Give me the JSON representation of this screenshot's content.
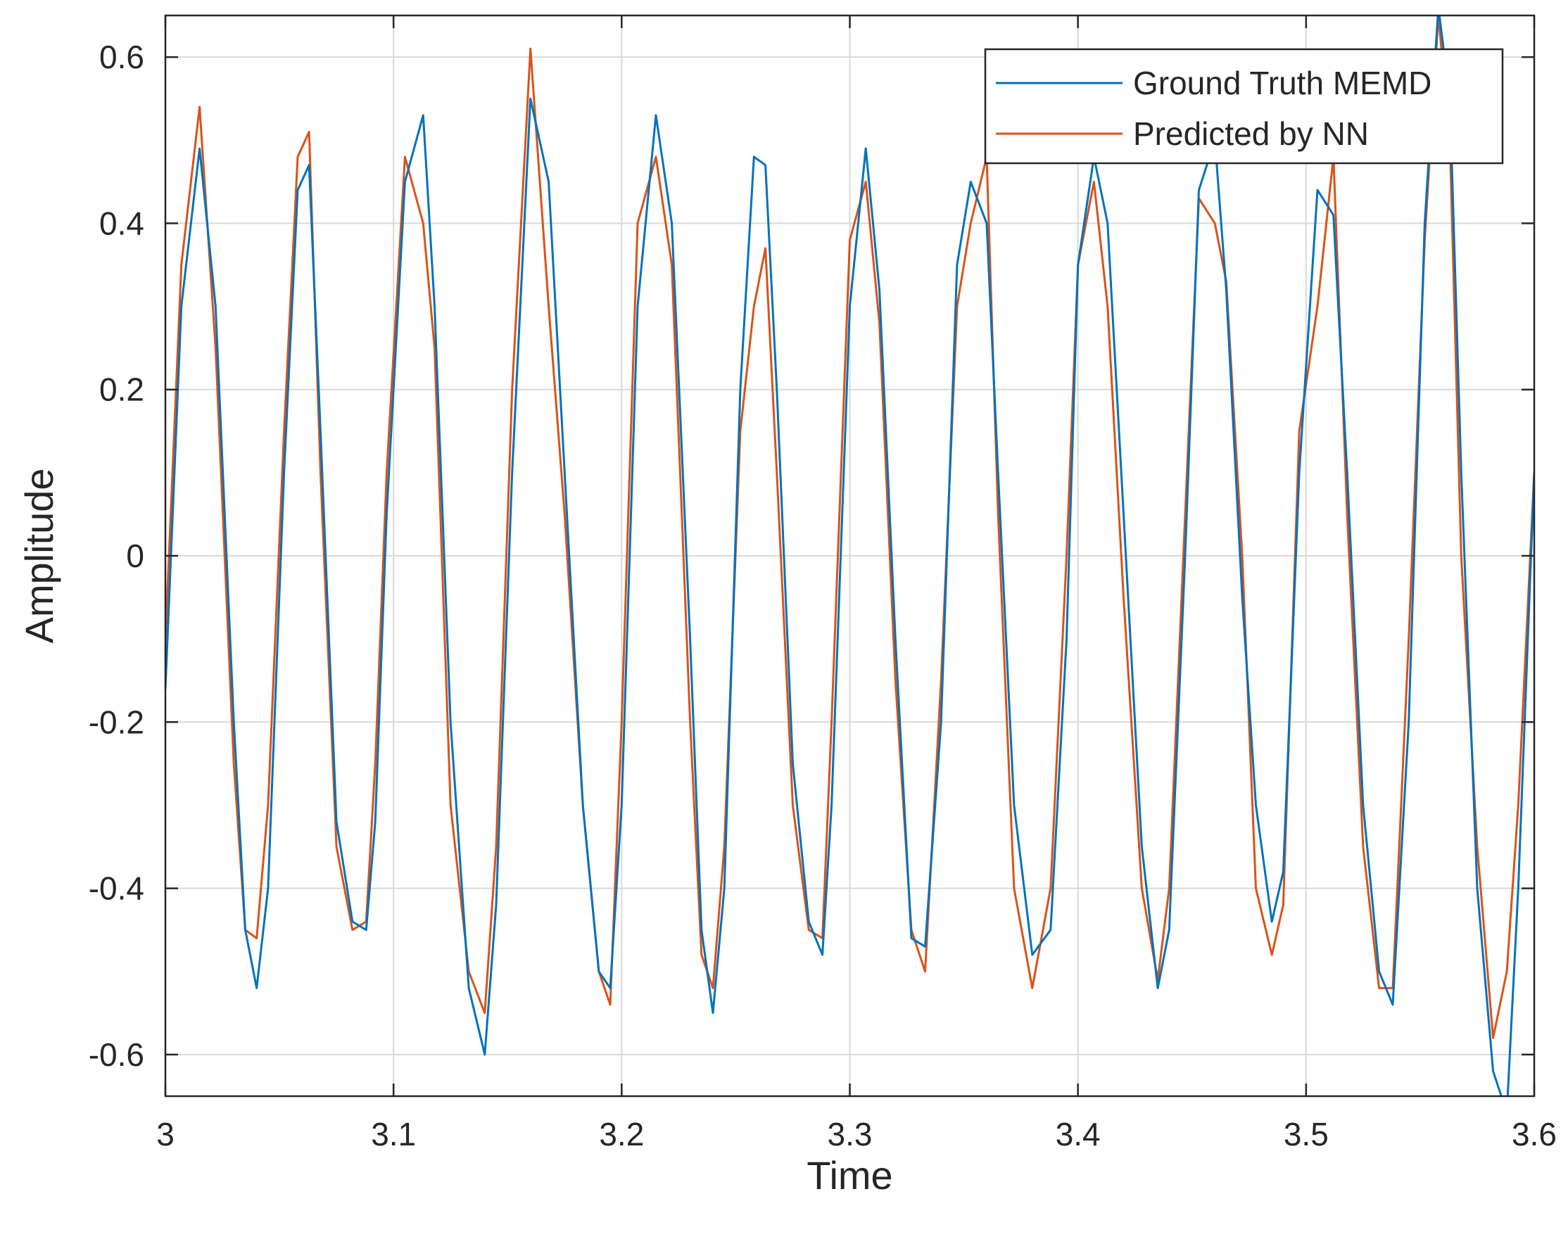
{
  "chart_data": {
    "type": "line",
    "title": "",
    "xlabel": "Time",
    "ylabel": "Amplitude",
    "xlim": [
      3.0,
      3.6
    ],
    "ylim": [
      -0.65,
      0.65
    ],
    "xticks": [
      3.0,
      3.1,
      3.2,
      3.3,
      3.4,
      3.5,
      3.6
    ],
    "xtick_labels": [
      "3",
      "3.1",
      "3.2",
      "3.3",
      "3.4",
      "3.5",
      "3.6"
    ],
    "yticks": [
      -0.6,
      -0.4,
      -0.2,
      0,
      0.2,
      0.4,
      0.6
    ],
    "ytick_labels": [
      "-0.6",
      "-0.4",
      "-0.2",
      "0",
      "0.2",
      "0.4",
      "0.6"
    ],
    "grid": true,
    "legend_position": "top-right",
    "series": [
      {
        "name": "Ground Truth MEMD",
        "color": "#0072BD",
        "x": [
          3.0,
          3.007,
          3.015,
          3.022,
          3.03,
          3.035,
          3.04,
          3.045,
          3.052,
          3.058,
          3.063,
          3.068,
          3.075,
          3.082,
          3.088,
          3.092,
          3.097,
          3.105,
          3.113,
          3.118,
          3.125,
          3.133,
          3.14,
          3.145,
          3.152,
          3.16,
          3.168,
          3.175,
          3.183,
          3.19,
          3.195,
          3.2,
          3.207,
          3.215,
          3.222,
          3.23,
          3.235,
          3.24,
          3.245,
          3.252,
          3.258,
          3.263,
          3.268,
          3.275,
          3.282,
          3.288,
          3.292,
          3.3,
          3.307,
          3.313,
          3.32,
          3.327,
          3.333,
          3.34,
          3.347,
          3.353,
          3.36,
          3.365,
          3.372,
          3.38,
          3.388,
          3.395,
          3.4,
          3.407,
          3.413,
          3.42,
          3.428,
          3.435,
          3.44,
          3.447,
          3.453,
          3.46,
          3.465,
          3.472,
          3.478,
          3.485,
          3.49,
          3.497,
          3.505,
          3.512,
          3.518,
          3.525,
          3.532,
          3.538,
          3.545,
          3.552,
          3.558,
          3.563,
          3.568,
          3.575,
          3.582,
          3.588,
          3.593,
          3.6
        ],
        "values": [
          -0.16,
          0.3,
          0.49,
          0.3,
          -0.2,
          -0.45,
          -0.52,
          -0.4,
          0.1,
          0.44,
          0.47,
          0.15,
          -0.32,
          -0.44,
          -0.45,
          -0.32,
          0.05,
          0.45,
          0.53,
          0.3,
          -0.2,
          -0.52,
          -0.6,
          -0.42,
          0.1,
          0.55,
          0.45,
          0.1,
          -0.3,
          -0.5,
          -0.52,
          -0.3,
          0.3,
          0.53,
          0.4,
          -0.1,
          -0.45,
          -0.55,
          -0.4,
          0.2,
          0.48,
          0.47,
          0.2,
          -0.25,
          -0.44,
          -0.48,
          -0.3,
          0.3,
          0.49,
          0.32,
          -0.1,
          -0.46,
          -0.47,
          -0.2,
          0.35,
          0.45,
          0.4,
          0.1,
          -0.3,
          -0.48,
          -0.45,
          -0.1,
          0.35,
          0.48,
          0.4,
          0.05,
          -0.35,
          -0.52,
          -0.45,
          0.0,
          0.44,
          0.5,
          0.32,
          -0.05,
          -0.3,
          -0.44,
          -0.38,
          0.1,
          0.44,
          0.41,
          0.1,
          -0.3,
          -0.5,
          -0.54,
          -0.2,
          0.4,
          0.66,
          0.55,
          0.1,
          -0.4,
          -0.62,
          -0.67,
          -0.4,
          0.1
        ]
      },
      {
        "name": "Predicted by NN",
        "color": "#D95319",
        "x": [
          3.0,
          3.007,
          3.015,
          3.022,
          3.03,
          3.035,
          3.04,
          3.045,
          3.052,
          3.058,
          3.063,
          3.068,
          3.075,
          3.082,
          3.088,
          3.092,
          3.097,
          3.105,
          3.113,
          3.118,
          3.125,
          3.133,
          3.14,
          3.145,
          3.152,
          3.16,
          3.168,
          3.175,
          3.183,
          3.19,
          3.195,
          3.2,
          3.207,
          3.215,
          3.222,
          3.23,
          3.235,
          3.24,
          3.245,
          3.252,
          3.258,
          3.263,
          3.268,
          3.275,
          3.282,
          3.288,
          3.292,
          3.3,
          3.307,
          3.313,
          3.32,
          3.327,
          3.333,
          3.34,
          3.347,
          3.353,
          3.36,
          3.365,
          3.372,
          3.38,
          3.388,
          3.395,
          3.4,
          3.407,
          3.413,
          3.42,
          3.428,
          3.435,
          3.44,
          3.447,
          3.453,
          3.46,
          3.465,
          3.472,
          3.478,
          3.485,
          3.49,
          3.497,
          3.505,
          3.512,
          3.518,
          3.525,
          3.532,
          3.538,
          3.545,
          3.552,
          3.558,
          3.563,
          3.568,
          3.575,
          3.582,
          3.588,
          3.593,
          3.6
        ],
        "values": [
          -0.1,
          0.35,
          0.54,
          0.25,
          -0.25,
          -0.45,
          -0.46,
          -0.3,
          0.15,
          0.48,
          0.51,
          0.1,
          -0.35,
          -0.45,
          -0.44,
          -0.25,
          0.1,
          0.48,
          0.4,
          0.25,
          -0.3,
          -0.5,
          -0.55,
          -0.35,
          0.2,
          0.61,
          0.3,
          0.05,
          -0.3,
          -0.5,
          -0.54,
          -0.2,
          0.4,
          0.48,
          0.35,
          -0.2,
          -0.48,
          -0.52,
          -0.35,
          0.15,
          0.3,
          0.37,
          0.1,
          -0.3,
          -0.45,
          -0.46,
          -0.2,
          0.38,
          0.45,
          0.28,
          -0.15,
          -0.45,
          -0.5,
          -0.15,
          0.3,
          0.4,
          0.48,
          0.05,
          -0.4,
          -0.52,
          -0.4,
          0.0,
          0.35,
          0.45,
          0.3,
          -0.05,
          -0.4,
          -0.51,
          -0.4,
          0.05,
          0.43,
          0.4,
          0.33,
          0.0,
          -0.4,
          -0.48,
          -0.42,
          0.15,
          0.3,
          0.48,
          0.05,
          -0.35,
          -0.52,
          -0.52,
          -0.1,
          0.38,
          0.65,
          0.5,
          0.0,
          -0.35,
          -0.58,
          -0.5,
          -0.3,
          0.1
        ]
      }
    ]
  }
}
